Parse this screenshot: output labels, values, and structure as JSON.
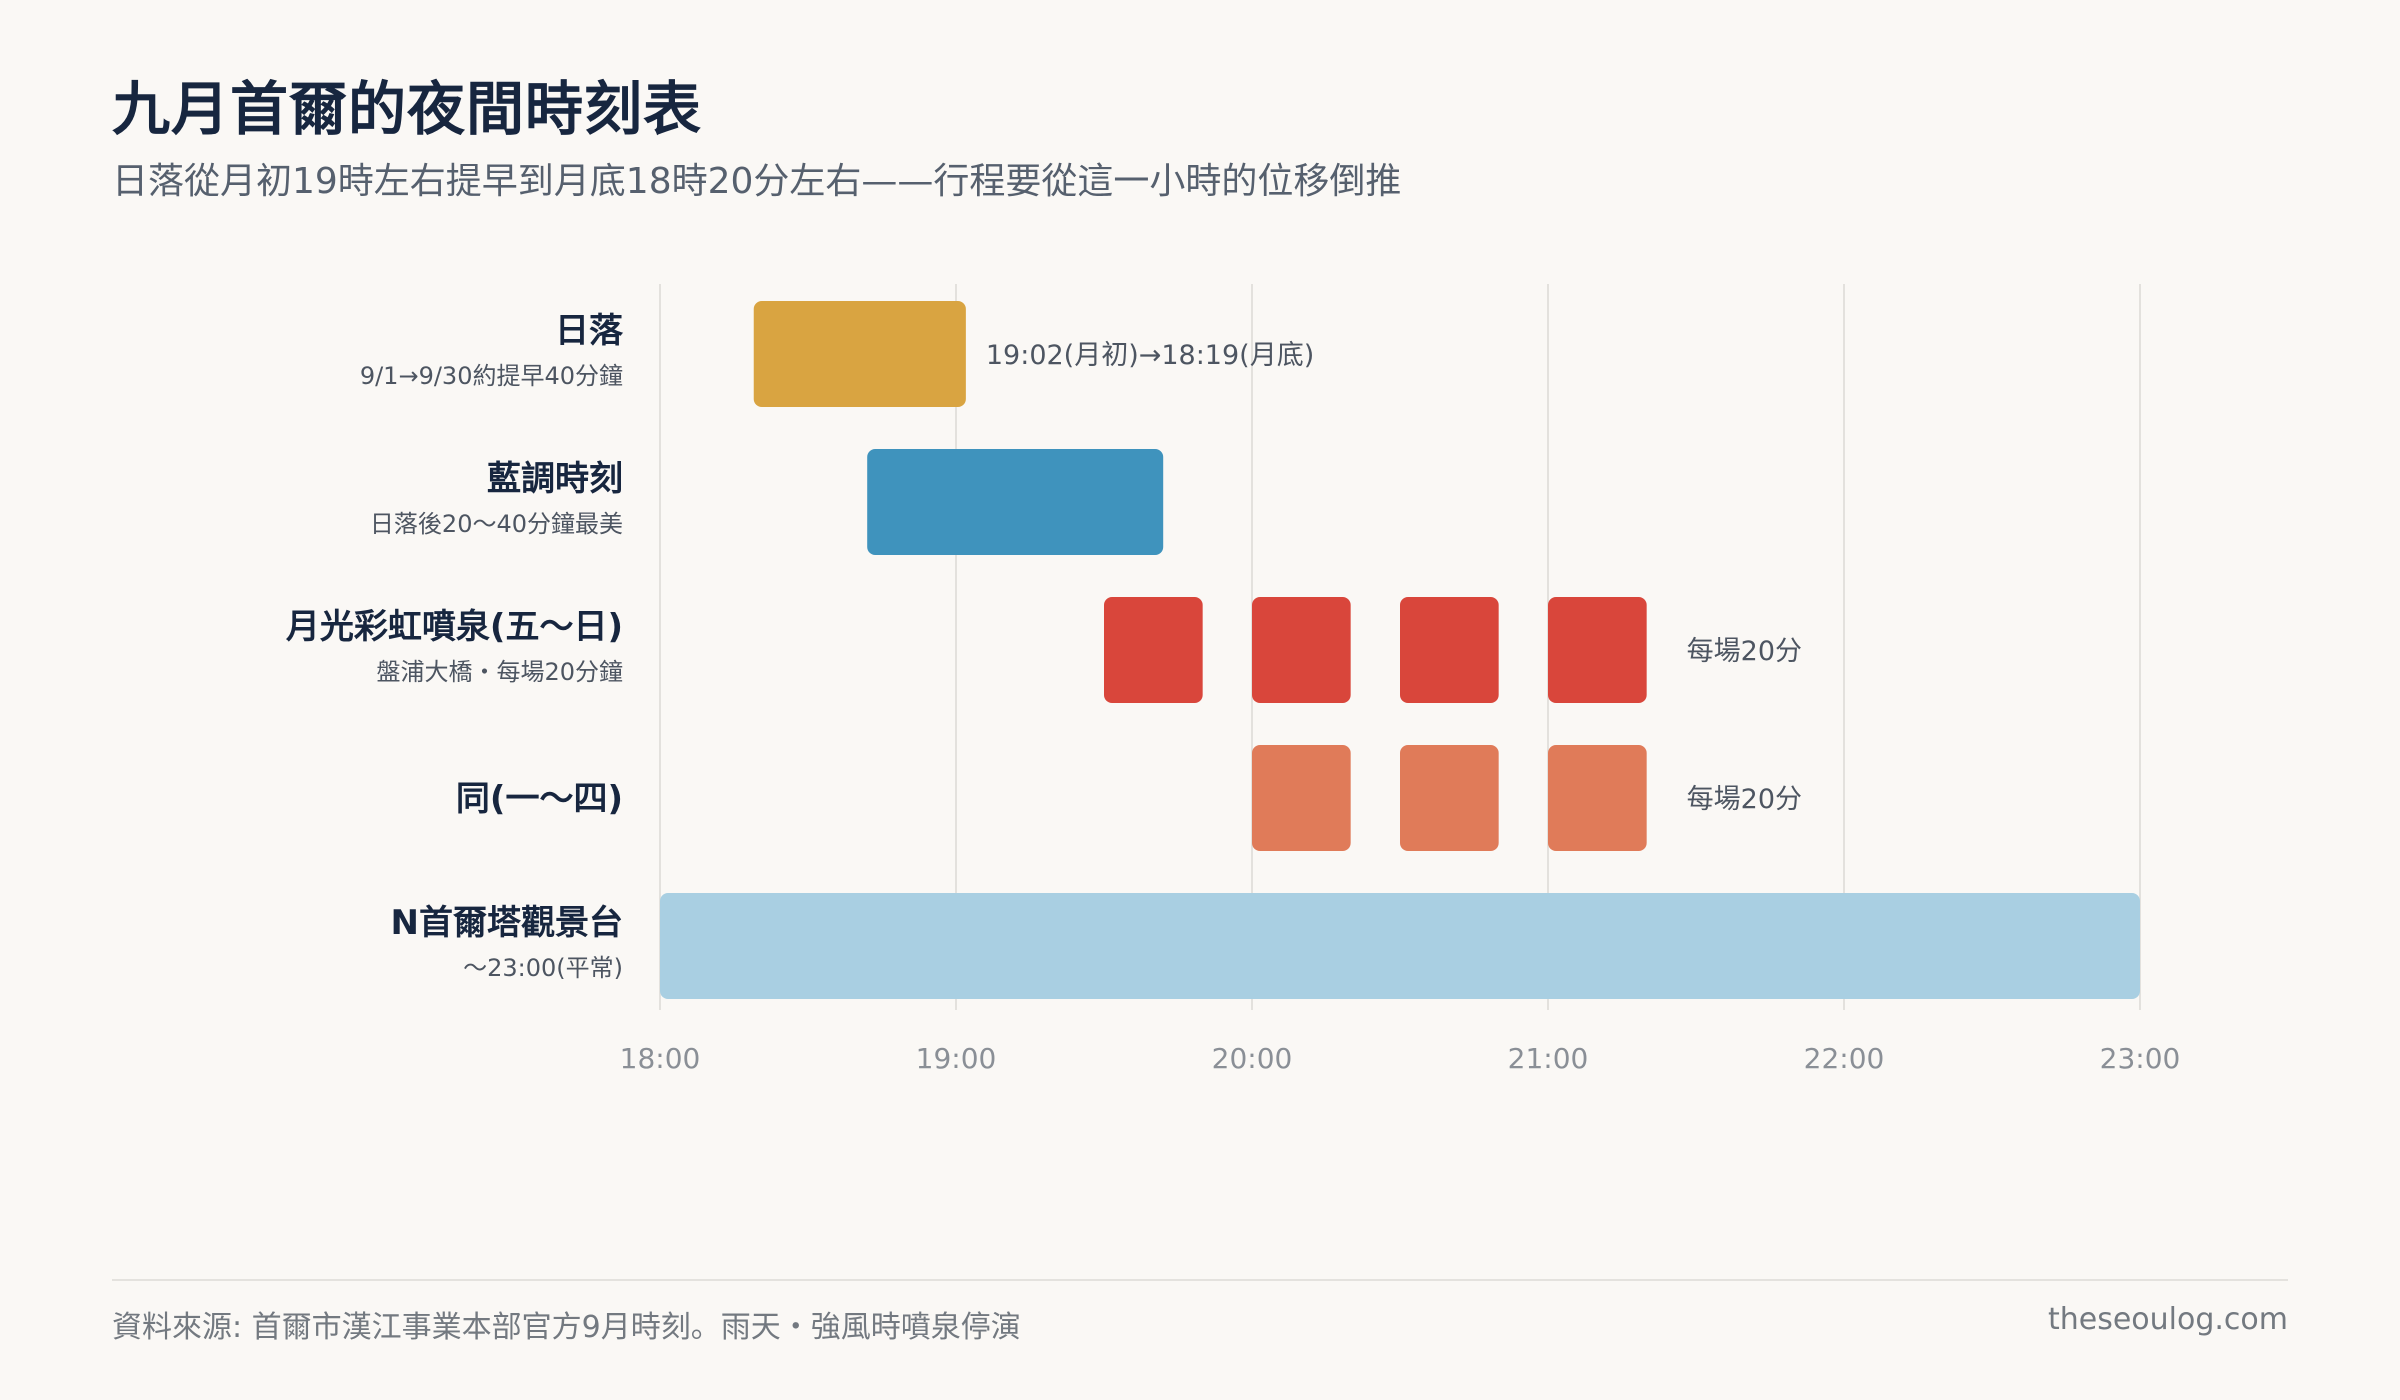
{
  "header": {
    "title": "九月首爾的夜間時刻表",
    "subtitle": "日落從月初19時左右提早到月底18時20分左右——行程要從這一小時的位移倒推"
  },
  "chart_data": {
    "type": "gantt",
    "x_range": [
      "18:00",
      "23:00"
    ],
    "x_ticks": [
      "18:00",
      "19:00",
      "20:00",
      "21:00",
      "22:00",
      "23:00"
    ],
    "grid": "vertical",
    "rows": [
      {
        "label": "日落",
        "sublabel": "9/1→9/30約提早40分鐘",
        "color": "#d9a441",
        "bars": [
          {
            "start": "18:19",
            "end": "19:02"
          }
        ],
        "note": "19:02(月初)→18:19(月底)"
      },
      {
        "label": "藍調時刻",
        "sublabel": "日落後20〜40分鐘最美",
        "color": "#3f93bd",
        "bars": [
          {
            "start": "18:42",
            "end": "19:42"
          }
        ],
        "note": ""
      },
      {
        "label": "月光彩虹噴泉(五〜日)",
        "sublabel": "盤浦大橋・每場20分鐘",
        "color": "#d9463b",
        "bars": [
          {
            "start": "19:30",
            "end": "19:50"
          },
          {
            "start": "20:00",
            "end": "20:20"
          },
          {
            "start": "20:30",
            "end": "20:50"
          },
          {
            "start": "21:00",
            "end": "21:20"
          }
        ],
        "note": "每場20分"
      },
      {
        "label": "同(一〜四)",
        "sublabel": "",
        "color": "#e07b59",
        "bars": [
          {
            "start": "20:00",
            "end": "20:20"
          },
          {
            "start": "20:30",
            "end": "20:50"
          },
          {
            "start": "21:00",
            "end": "21:20"
          }
        ],
        "note": "每場20分"
      },
      {
        "label": "N首爾塔觀景台",
        "sublabel": "〜23:00(平常)",
        "color": "#a9cfe2",
        "bars": [
          {
            "start": "18:00",
            "end": "23:00"
          }
        ],
        "note": ""
      }
    ]
  },
  "footer": {
    "source": "資料來源: 首爾市漢江事業本部官方9月時刻。雨天・強風時噴泉停演",
    "site": "theseoulog.com"
  }
}
